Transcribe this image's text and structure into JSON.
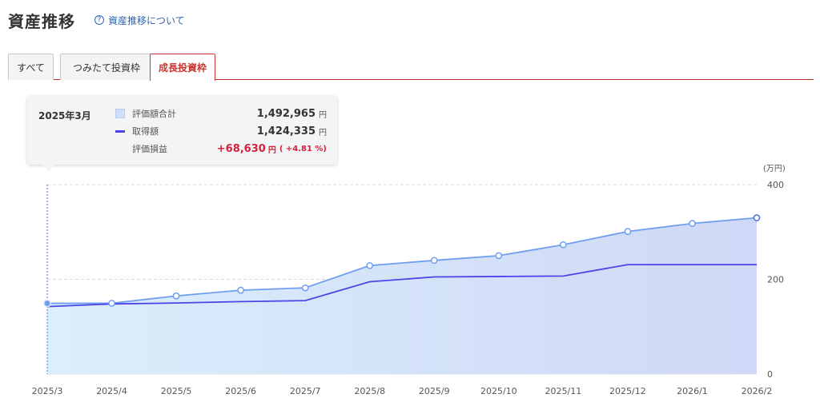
{
  "header": {
    "title": "資産推移",
    "help_link": "資産推移について",
    "help_icon": "question-circle-icon"
  },
  "tabs": [
    {
      "label": "すべて",
      "active": false
    },
    {
      "label": "つみたて投資枠",
      "active": false
    },
    {
      "label": "成長投資枠",
      "active": true
    }
  ],
  "colors": {
    "accent": "#c9362f",
    "area_fill": "#cfdff7",
    "valuation_line": "#6f9ef0",
    "cost_line": "#4c44e6",
    "gain": "#d4213c"
  },
  "tooltip": {
    "date": "2025年3月",
    "valuation_label": "評価額合計",
    "valuation_value": "1,492,965",
    "cost_label": "取得額",
    "cost_value": "1,424,335",
    "gain_label": "評価損益",
    "gain_value": "+68,630",
    "gain_pct": "( +4.81 %)",
    "unit": "円"
  },
  "chart_data": {
    "type": "area",
    "categories": [
      "2025/3",
      "2025/4",
      "2025/5",
      "2025/6",
      "2025/7",
      "2025/8",
      "2025/9",
      "2025/10",
      "2025/11",
      "2025/12",
      "2026/1",
      "2026/2"
    ],
    "series": [
      {
        "name": "評価額合計",
        "type": "area",
        "values": [
          149.3,
          149.5,
          165,
          177,
          182,
          229,
          240,
          250,
          273,
          301,
          318,
          330
        ]
      },
      {
        "name": "取得額",
        "type": "line",
        "values": [
          142.4,
          148,
          150,
          153,
          155,
          195,
          205,
          206,
          207,
          231,
          231,
          231
        ]
      }
    ],
    "y_unit": "(万円)",
    "yticks": [
      0,
      200,
      400
    ],
    "ylim": [
      0,
      400
    ],
    "grid": true,
    "highlighted_category": "2025/3"
  }
}
